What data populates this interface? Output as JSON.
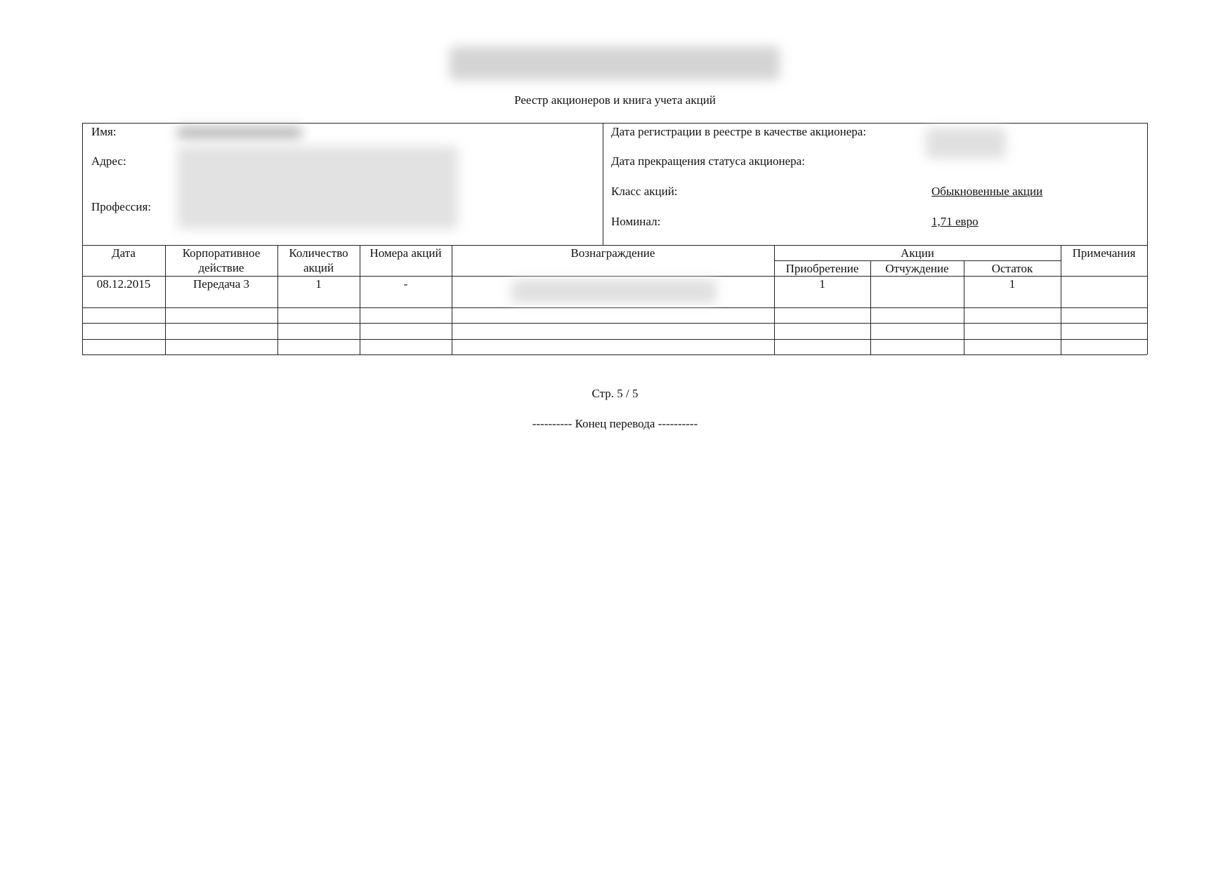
{
  "title": "Реестр акционеров и книга учета акций",
  "info": {
    "name_label": "Имя:",
    "address_label": "Адрес:",
    "profession_label": "Профессия:",
    "reg_date_label": "Дата регистрации в реестре в качестве акционера:",
    "end_date_label": "Дата прекращения статуса акционера:",
    "class_label": "Класс акций:",
    "class_value": "Обыкновенные акции",
    "nominal_label": "Номинал:",
    "nominal_value": "1,71 евро"
  },
  "table": {
    "headers": {
      "date": "Дата",
      "action": "Корпоративное действие",
      "qty": "Количество акций",
      "numbers": "Номера акций",
      "reward": "Вознаграждение",
      "shares": "Акции",
      "acq": "Приобретение",
      "disp": "Отчуждение",
      "rest": "Остаток",
      "notes": "Примечания"
    },
    "rows": [
      {
        "date": "08.12.2015",
        "action": "Передача 3",
        "qty": "1",
        "numbers": "-",
        "acq": "1",
        "disp": "",
        "rest": "1",
        "notes": ""
      }
    ]
  },
  "footer": {
    "page": "Стр. 5 / 5",
    "end": "---------- Конец перевода ----------"
  }
}
